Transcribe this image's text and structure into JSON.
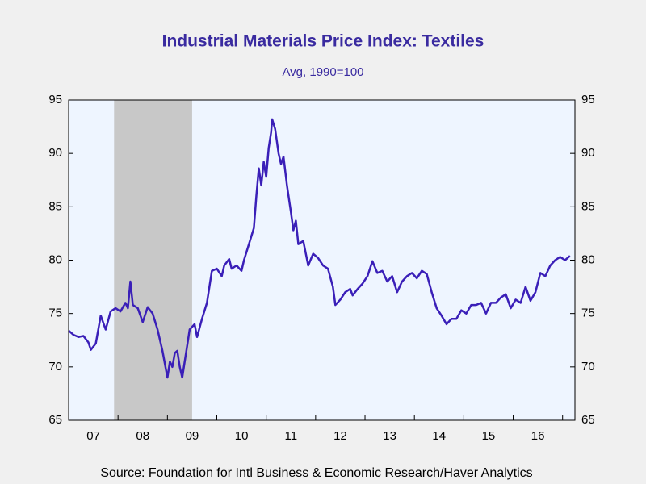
{
  "chart_data": {
    "type": "line",
    "title": "Industrial Materials Price Index: Textiles",
    "subtitle": "Avg, 1990=100",
    "source": "Source:  Foundation for Intl Business & Economic Research/Haver Analytics",
    "xlim": [
      2007,
      2017.25
    ],
    "xticks": [
      {
        "value": 2007.5,
        "label": "07"
      },
      {
        "value": 2008.5,
        "label": "08"
      },
      {
        "value": 2009.5,
        "label": "09"
      },
      {
        "value": 2010.5,
        "label": "10"
      },
      {
        "value": 2011.5,
        "label": "11"
      },
      {
        "value": 2012.5,
        "label": "12"
      },
      {
        "value": 2013.5,
        "label": "13"
      },
      {
        "value": 2014.5,
        "label": "14"
      },
      {
        "value": 2015.5,
        "label": "15"
      },
      {
        "value": 2016.5,
        "label": "16"
      }
    ],
    "x_tick_marks": [
      2008,
      2009,
      2010,
      2011,
      2012,
      2013,
      2014,
      2015,
      2016,
      2017
    ],
    "ylim": [
      65,
      95
    ],
    "yticks": [
      65,
      70,
      75,
      80,
      85,
      90,
      95
    ],
    "y2lim": [
      65,
      95
    ],
    "y2ticks": [
      65,
      70,
      75,
      80,
      85,
      90,
      95
    ],
    "recession": [
      2007.92,
      2009.5
    ],
    "x": [
      2007.0,
      2007.1,
      2007.2,
      2007.3,
      2007.4,
      2007.45,
      2007.55,
      2007.65,
      2007.75,
      2007.85,
      2007.95,
      2008.05,
      2008.15,
      2008.2,
      2008.25,
      2008.3,
      2008.4,
      2008.5,
      2008.6,
      2008.7,
      2008.8,
      2008.9,
      2009.0,
      2009.05,
      2009.1,
      2009.15,
      2009.2,
      2009.25,
      2009.3,
      2009.35,
      2009.45,
      2009.55,
      2009.6,
      2009.7,
      2009.8,
      2009.9,
      2010.0,
      2010.1,
      2010.15,
      2010.25,
      2010.3,
      2010.4,
      2010.5,
      2010.55,
      2010.65,
      2010.75,
      2010.8,
      2010.85,
      2010.9,
      2010.95,
      2011.0,
      2011.05,
      2011.1,
      2011.12,
      2011.18,
      2011.25,
      2011.3,
      2011.35,
      2011.42,
      2011.5,
      2011.55,
      2011.6,
      2011.65,
      2011.75,
      2011.85,
      2011.95,
      2012.05,
      2012.15,
      2012.25,
      2012.35,
      2012.4,
      2012.5,
      2012.6,
      2012.7,
      2012.75,
      2012.85,
      2012.95,
      2013.05,
      2013.15,
      2013.25,
      2013.35,
      2013.45,
      2013.55,
      2013.65,
      2013.75,
      2013.85,
      2013.95,
      2014.05,
      2014.15,
      2014.25,
      2014.35,
      2014.45,
      2014.55,
      2014.65,
      2014.75,
      2014.85,
      2014.95,
      2015.05,
      2015.15,
      2015.25,
      2015.35,
      2015.45,
      2015.55,
      2015.65,
      2015.75,
      2015.85,
      2015.95,
      2016.05,
      2016.15,
      2016.25,
      2016.35,
      2016.45,
      2016.55,
      2016.65,
      2016.75,
      2016.85,
      2016.95,
      2017.05,
      2017.15
    ],
    "series": [
      {
        "name": "Textiles",
        "color": "#3a1fb8",
        "values": [
          73.4,
          73.0,
          72.8,
          72.9,
          72.3,
          71.6,
          72.2,
          74.8,
          73.5,
          75.2,
          75.5,
          75.2,
          76.0,
          75.5,
          78.0,
          75.8,
          75.5,
          74.2,
          75.6,
          75.0,
          73.5,
          71.5,
          69.0,
          70.5,
          70.0,
          71.3,
          71.5,
          70.0,
          69.0,
          70.5,
          73.5,
          74.0,
          72.8,
          74.5,
          76.0,
          79.0,
          79.2,
          78.5,
          79.5,
          80.1,
          79.2,
          79.5,
          79.0,
          80.0,
          81.5,
          83.0,
          86.0,
          88.6,
          87.0,
          89.2,
          87.8,
          90.5,
          92.0,
          93.2,
          92.3,
          90.0,
          89.0,
          89.7,
          87.0,
          84.5,
          82.8,
          83.7,
          81.5,
          81.8,
          79.5,
          80.6,
          80.2,
          79.5,
          79.2,
          77.5,
          75.8,
          76.3,
          77.0,
          77.3,
          76.7,
          77.3,
          77.8,
          78.5,
          79.9,
          78.8,
          79.0,
          78.0,
          78.5,
          77.0,
          78.0,
          78.5,
          78.8,
          78.3,
          79.0,
          78.7,
          77.0,
          75.5,
          74.8,
          74.0,
          74.5,
          74.5,
          75.3,
          75.0,
          75.8,
          75.8,
          76.0,
          75.0,
          76.0,
          76.0,
          76.5,
          76.8,
          75.5,
          76.3,
          76.0,
          77.5,
          76.2,
          77.0,
          78.8,
          78.5,
          79.5,
          80.0,
          80.3,
          80.0,
          80.4
        ]
      }
    ]
  }
}
